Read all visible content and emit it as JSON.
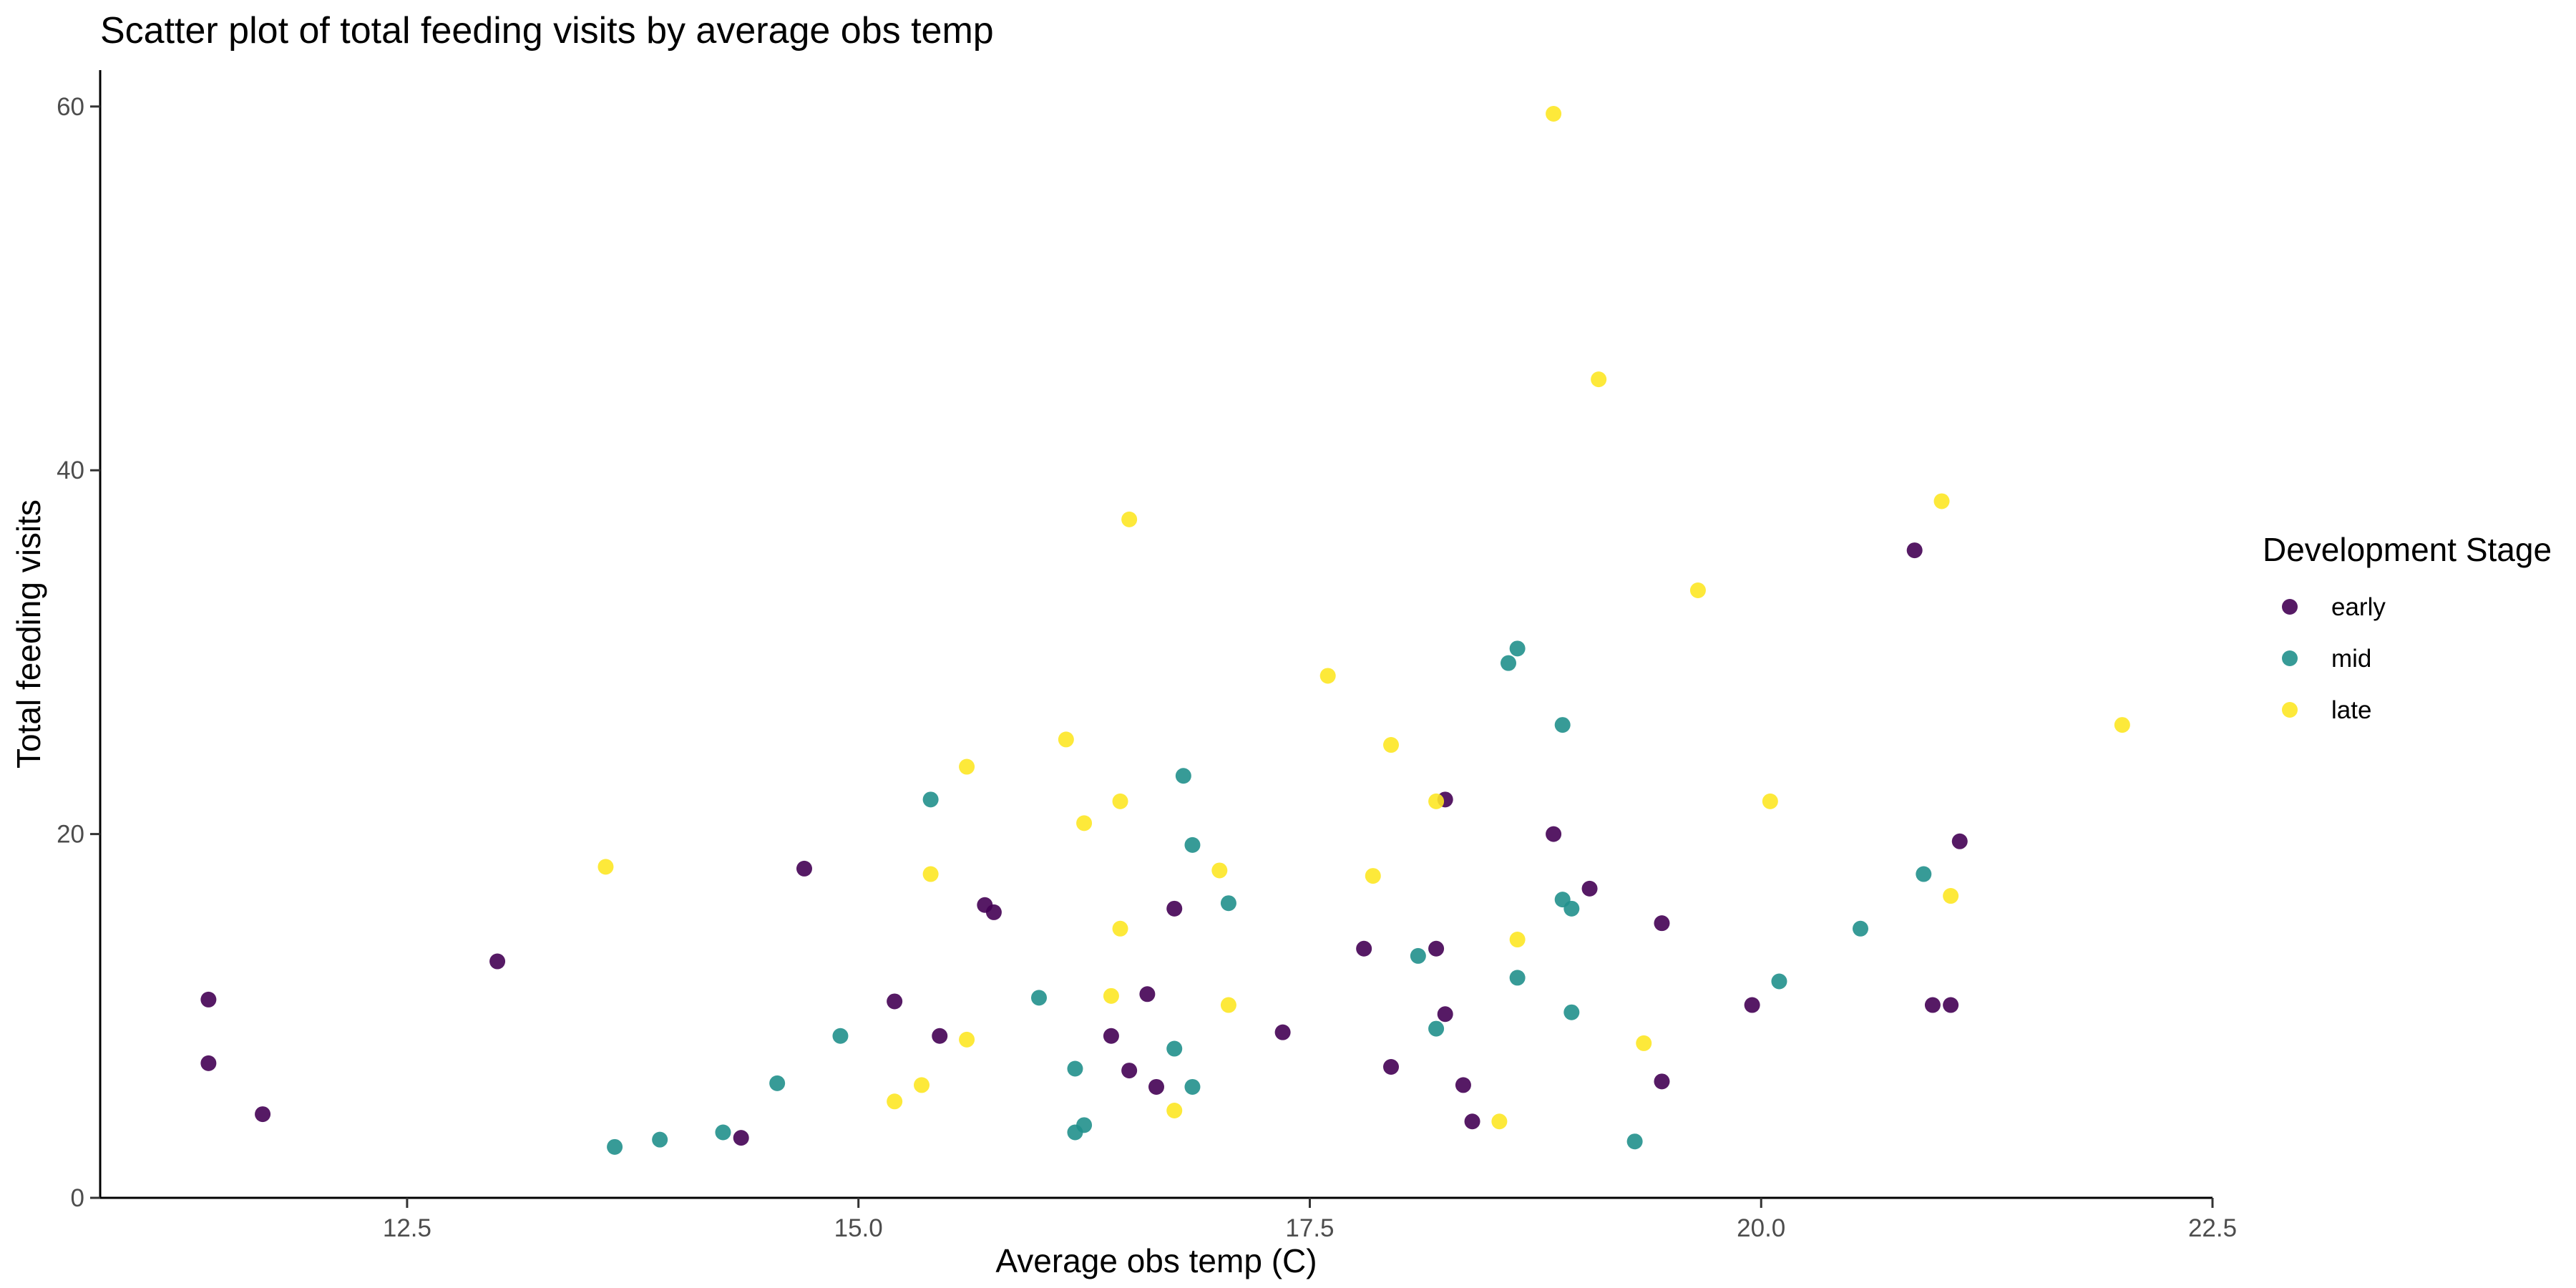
{
  "chart_data": {
    "type": "scatter",
    "title": "Scatter plot of total feeding visits by average obs temp",
    "xlabel": "Average obs temp (C)",
    "ylabel": "Total feeding visits",
    "xlim": [
      10.8,
      22.5
    ],
    "ylim": [
      0,
      62
    ],
    "x_ticks": [
      12.5,
      15.0,
      17.5,
      20.0,
      22.5
    ],
    "x_tick_labels": [
      "12.5",
      "15.0",
      "17.5",
      "20.0",
      "22.5"
    ],
    "y_ticks": [
      0,
      20,
      40,
      60
    ],
    "y_tick_labels": [
      "0",
      "20",
      "40",
      "60"
    ],
    "grid": false,
    "legend": {
      "title": "Development Stage",
      "placement": "right"
    },
    "series": [
      {
        "name": "early",
        "color": "#440154",
        "points": [
          [
            11.4,
            10.9
          ],
          [
            11.4,
            7.4
          ],
          [
            11.7,
            4.6
          ],
          [
            13.0,
            13.0
          ],
          [
            14.35,
            3.3
          ],
          [
            14.7,
            18.1
          ],
          [
            15.2,
            10.8
          ],
          [
            15.45,
            8.9
          ],
          [
            15.7,
            16.1
          ],
          [
            15.75,
            15.7
          ],
          [
            16.4,
            8.9
          ],
          [
            16.5,
            7.0
          ],
          [
            16.6,
            11.2
          ],
          [
            16.65,
            6.1
          ],
          [
            16.75,
            15.9
          ],
          [
            17.35,
            9.1
          ],
          [
            17.8,
            13.7
          ],
          [
            17.95,
            7.2
          ],
          [
            18.2,
            13.7
          ],
          [
            18.25,
            10.1
          ],
          [
            18.25,
            21.9
          ],
          [
            18.35,
            6.2
          ],
          [
            18.4,
            4.2
          ],
          [
            18.85,
            20.0
          ],
          [
            19.05,
            17.0
          ],
          [
            19.45,
            15.1
          ],
          [
            19.45,
            6.4
          ],
          [
            19.95,
            10.6
          ],
          [
            20.85,
            35.6
          ],
          [
            20.95,
            10.6
          ],
          [
            21.05,
            10.6
          ],
          [
            21.1,
            19.6
          ]
        ]
      },
      {
        "name": "mid",
        "color": "#21908C",
        "points": [
          [
            13.65,
            2.8
          ],
          [
            13.9,
            3.2
          ],
          [
            14.25,
            3.6
          ],
          [
            14.55,
            6.3
          ],
          [
            14.9,
            8.9
          ],
          [
            15.4,
            21.9
          ],
          [
            16.0,
            11.0
          ],
          [
            16.2,
            7.1
          ],
          [
            16.2,
            3.6
          ],
          [
            16.25,
            4.0
          ],
          [
            16.75,
            8.2
          ],
          [
            16.8,
            23.2
          ],
          [
            16.85,
            19.4
          ],
          [
            16.85,
            6.1
          ],
          [
            17.05,
            16.2
          ],
          [
            18.1,
            13.3
          ],
          [
            18.2,
            9.3
          ],
          [
            18.6,
            29.4
          ],
          [
            18.65,
            30.2
          ],
          [
            18.65,
            12.1
          ],
          [
            18.9,
            26.0
          ],
          [
            18.9,
            16.4
          ],
          [
            18.95,
            15.9
          ],
          [
            18.95,
            10.2
          ],
          [
            19.3,
            3.1
          ],
          [
            20.1,
            11.9
          ],
          [
            20.55,
            14.8
          ],
          [
            20.9,
            17.8
          ]
        ]
      },
      {
        "name": "late",
        "color": "#FDE725",
        "points": [
          [
            13.6,
            18.2
          ],
          [
            15.2,
            5.3
          ],
          [
            15.35,
            6.2
          ],
          [
            15.4,
            17.8
          ],
          [
            15.6,
            23.7
          ],
          [
            15.6,
            8.7
          ],
          [
            16.15,
            25.2
          ],
          [
            16.25,
            20.6
          ],
          [
            16.4,
            11.1
          ],
          [
            16.45,
            14.8
          ],
          [
            16.45,
            21.8
          ],
          [
            16.5,
            37.3
          ],
          [
            16.75,
            4.8
          ],
          [
            17.0,
            18.0
          ],
          [
            17.05,
            10.6
          ],
          [
            17.6,
            28.7
          ],
          [
            17.85,
            17.7
          ],
          [
            17.95,
            24.9
          ],
          [
            18.2,
            21.8
          ],
          [
            18.55,
            4.2
          ],
          [
            18.65,
            14.2
          ],
          [
            18.85,
            59.6
          ],
          [
            19.1,
            45.0
          ],
          [
            19.35,
            8.5
          ],
          [
            19.65,
            33.4
          ],
          [
            20.05,
            21.8
          ],
          [
            21.0,
            38.3
          ],
          [
            21.05,
            16.6
          ],
          [
            22.0,
            26.0
          ]
        ]
      }
    ]
  }
}
